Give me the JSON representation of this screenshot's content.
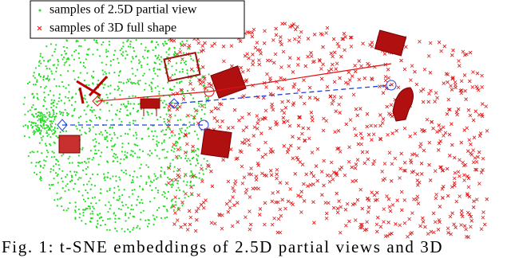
{
  "figure": {
    "legend": [
      {
        "label": "samples of 2.5D partial view",
        "color": "#22dd22"
      },
      {
        "label": "samples of 3D full shape",
        "color": "#e01010"
      }
    ],
    "caption": "Fig. 1: t-SNE embeddings of 2.5D partial views and 3D"
  }
}
